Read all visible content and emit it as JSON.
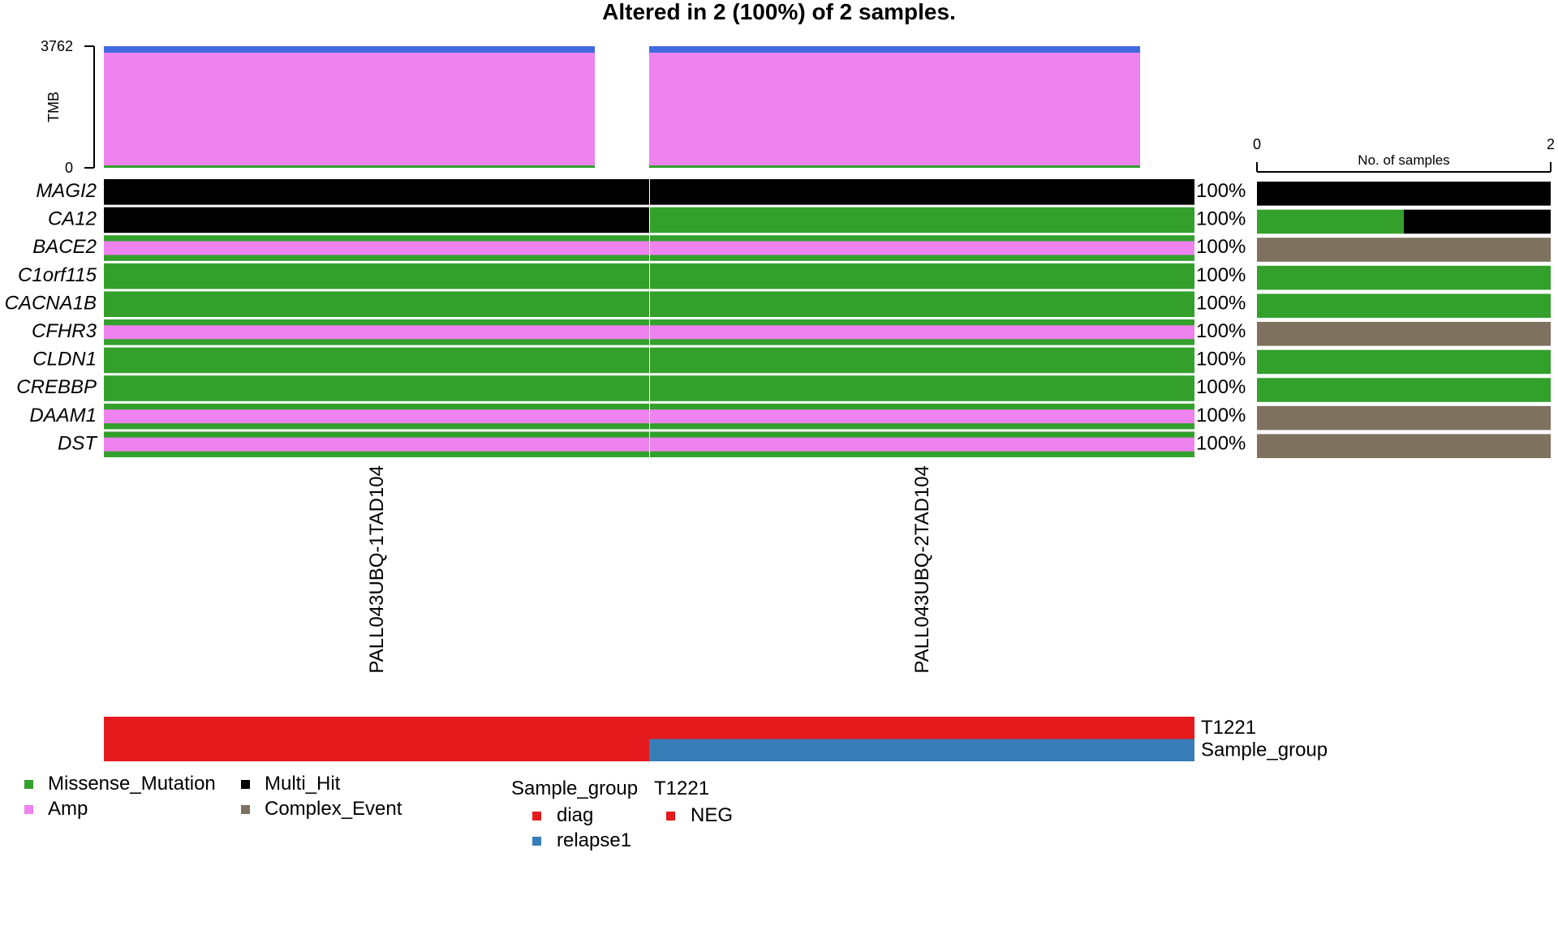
{
  "chart_data": {
    "type": "heatmap",
    "title": "Altered in 2 (100%) of 2 samples.",
    "colors": {
      "Missense_Mutation": "#33a02c",
      "Amp": "#ee82ee",
      "Multi_Hit": "#000000",
      "Complex_Event": "#7f7160",
      "diag": "#e41a1c",
      "relapse1": "#377eb8",
      "NEG": "#e41a1c",
      "tmb_top": "#4169e1"
    },
    "samples": [
      "PALL043UBQ-1TAD104",
      "PALL043UBQ-2TAD104"
    ],
    "tmb": {
      "label": "TMB",
      "ylim": [
        0,
        3762
      ],
      "ticks": [
        "3762",
        "0"
      ],
      "values": [
        3762,
        3762
      ]
    },
    "genes": [
      "MAGI2",
      "CA12",
      "BACE2",
      "C1orf115",
      "CACNA1B",
      "CFHR3",
      "CLDN1",
      "CREBBP",
      "DAAM1",
      "DST"
    ],
    "percents": [
      "100%",
      "100%",
      "100%",
      "100%",
      "100%",
      "100%",
      "100%",
      "100%",
      "100%",
      "100%"
    ],
    "matrix": [
      [
        "Multi_Hit",
        "Multi_Hit"
      ],
      [
        "Multi_Hit",
        "Missense_Mutation"
      ],
      [
        "Complex_Event",
        "Complex_Event"
      ],
      [
        "Missense_Mutation",
        "Missense_Mutation"
      ],
      [
        "Missense_Mutation",
        "Missense_Mutation"
      ],
      [
        "Complex_Event",
        "Complex_Event"
      ],
      [
        "Missense_Mutation",
        "Missense_Mutation"
      ],
      [
        "Missense_Mutation",
        "Missense_Mutation"
      ],
      [
        "Complex_Event",
        "Complex_Event"
      ],
      [
        "Complex_Event",
        "Complex_Event"
      ]
    ],
    "gene_bars": {
      "label": "No. of samples",
      "xlim": [
        0,
        2
      ],
      "ticks": [
        "0",
        "2"
      ],
      "counts": [
        {
          "Multi_Hit": 2
        },
        {
          "Missense_Mutation": 1,
          "Multi_Hit": 1
        },
        {
          "Complex_Event": 2
        },
        {
          "Missense_Mutation": 2
        },
        {
          "Missense_Mutation": 2
        },
        {
          "Complex_Event": 2
        },
        {
          "Missense_Mutation": 2
        },
        {
          "Missense_Mutation": 2
        },
        {
          "Complex_Event": 2
        },
        {
          "Complex_Event": 2
        }
      ]
    },
    "annotations": [
      {
        "name": "T1221",
        "values": [
          "NEG",
          "NEG"
        ]
      },
      {
        "name": "Sample_group",
        "values": [
          "diag",
          "relapse1"
        ]
      }
    ],
    "legend": {
      "variant_items": [
        [
          "Missense_Mutation",
          "Multi_Hit"
        ],
        [
          "Amp",
          "Complex_Event"
        ]
      ],
      "annotation_groups": [
        {
          "title": "Sample_group",
          "items": [
            "diag",
            "relapse1"
          ]
        },
        {
          "title": "T1221",
          "items": [
            "NEG"
          ]
        }
      ]
    }
  }
}
